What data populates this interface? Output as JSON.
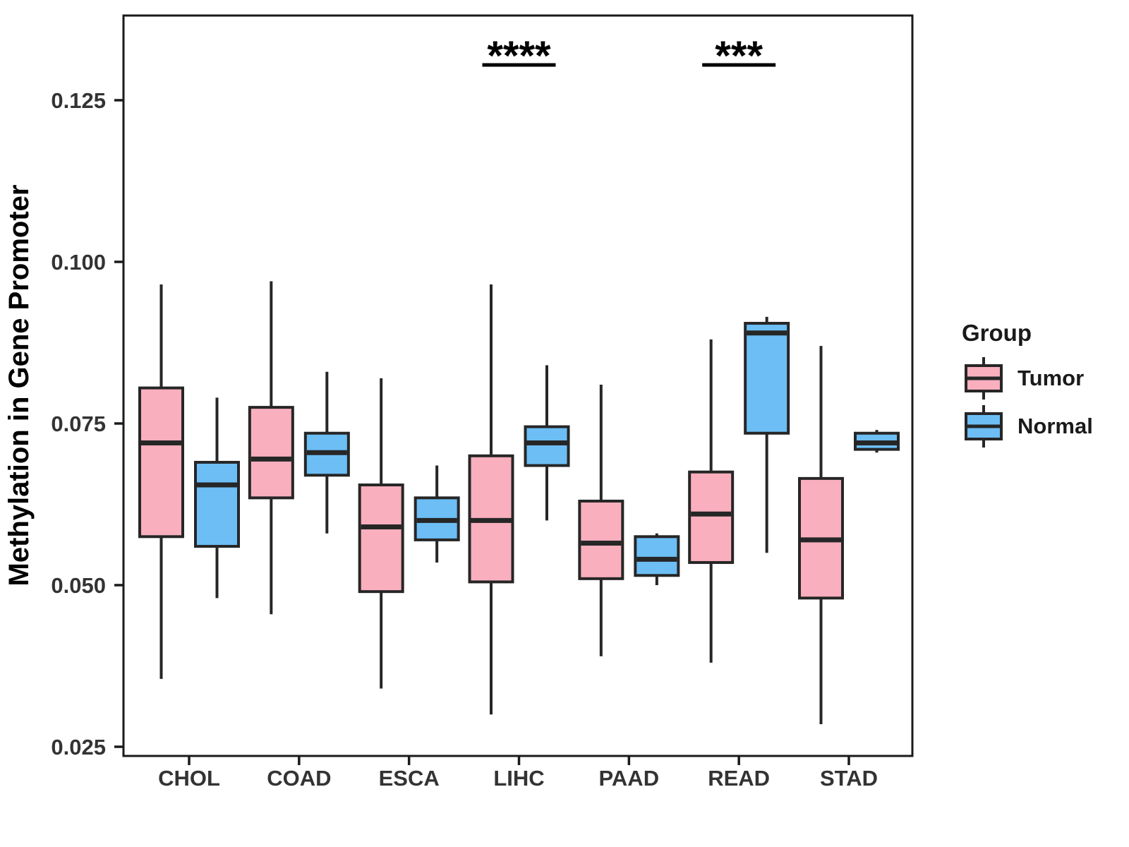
{
  "figure": {
    "background": "#FFFFFF",
    "panel_border_color": "#1A1A1A",
    "line_color": "#262626",
    "text_color": "#333333",
    "y_axis": {
      "title": "Methylation in Gene Promoter",
      "tick_labels": [
        "0.025",
        "0.050",
        "0.075",
        "0.100",
        "0.125"
      ],
      "tick_values": [
        0.025,
        0.05,
        0.075,
        0.1,
        0.125
      ]
    },
    "x_axis": {
      "tick_labels": [
        "CHOL",
        "COAD",
        "ESCA",
        "LIHC",
        "PAAD",
        "READ",
        "STAD"
      ]
    },
    "legend": {
      "title": "Group",
      "entries": [
        {
          "label": "Tumor",
          "color": "#F9AFBE"
        },
        {
          "label": "Normal",
          "color": "#6CBEF5"
        }
      ]
    }
  },
  "chart_data": {
    "type": "boxplot",
    "title": "",
    "xlabel": "",
    "ylabel": "Methylation in Gene Promoter",
    "categories": [
      "CHOL",
      "COAD",
      "ESCA",
      "LIHC",
      "PAAD",
      "READ",
      "STAD"
    ],
    "ylim": [
      0.0236,
      0.1381
    ],
    "y_ticks": [
      0.025,
      0.05,
      0.075,
      0.1,
      0.125
    ],
    "grid": "off",
    "legend_position": "right",
    "series": [
      {
        "name": "Tumor",
        "color": "#F9AFBE",
        "boxes": [
          {
            "category": "CHOL",
            "min": 0.0355,
            "q1": 0.0575,
            "median": 0.072,
            "q3": 0.0805,
            "max": 0.0965
          },
          {
            "category": "COAD",
            "min": 0.0455,
            "q1": 0.0635,
            "median": 0.0695,
            "q3": 0.0775,
            "max": 0.097
          },
          {
            "category": "ESCA",
            "min": 0.034,
            "q1": 0.049,
            "median": 0.059,
            "q3": 0.0655,
            "max": 0.082
          },
          {
            "category": "LIHC",
            "min": 0.03,
            "q1": 0.0505,
            "median": 0.06,
            "q3": 0.07,
            "max": 0.0965
          },
          {
            "category": "PAAD",
            "min": 0.039,
            "q1": 0.051,
            "median": 0.0565,
            "q3": 0.063,
            "max": 0.081
          },
          {
            "category": "READ",
            "min": 0.038,
            "q1": 0.0535,
            "median": 0.061,
            "q3": 0.0675,
            "max": 0.088
          },
          {
            "category": "STAD",
            "min": 0.0285,
            "q1": 0.048,
            "median": 0.057,
            "q3": 0.0665,
            "max": 0.087
          }
        ]
      },
      {
        "name": "Normal",
        "color": "#6CBEF5",
        "boxes": [
          {
            "category": "CHOL",
            "min": 0.048,
            "q1": 0.056,
            "median": 0.0655,
            "q3": 0.069,
            "max": 0.079
          },
          {
            "category": "COAD",
            "min": 0.058,
            "q1": 0.067,
            "median": 0.0705,
            "q3": 0.0735,
            "max": 0.083
          },
          {
            "category": "ESCA",
            "min": 0.0535,
            "q1": 0.057,
            "median": 0.06,
            "q3": 0.0635,
            "max": 0.0685
          },
          {
            "category": "LIHC",
            "min": 0.06,
            "q1": 0.0685,
            "median": 0.072,
            "q3": 0.0745,
            "max": 0.084
          },
          {
            "category": "PAAD",
            "min": 0.05,
            "q1": 0.0515,
            "median": 0.054,
            "q3": 0.0575,
            "max": 0.058
          },
          {
            "category": "READ",
            "min": 0.055,
            "q1": 0.0735,
            "median": 0.089,
            "q3": 0.0905,
            "max": 0.0915
          },
          {
            "category": "STAD",
            "min": 0.0705,
            "q1": 0.071,
            "median": 0.072,
            "q3": 0.0735,
            "max": 0.074
          }
        ]
      }
    ],
    "annotations": [
      {
        "category": "LIHC",
        "text": "****"
      },
      {
        "category": "READ",
        "text": "***"
      }
    ]
  }
}
